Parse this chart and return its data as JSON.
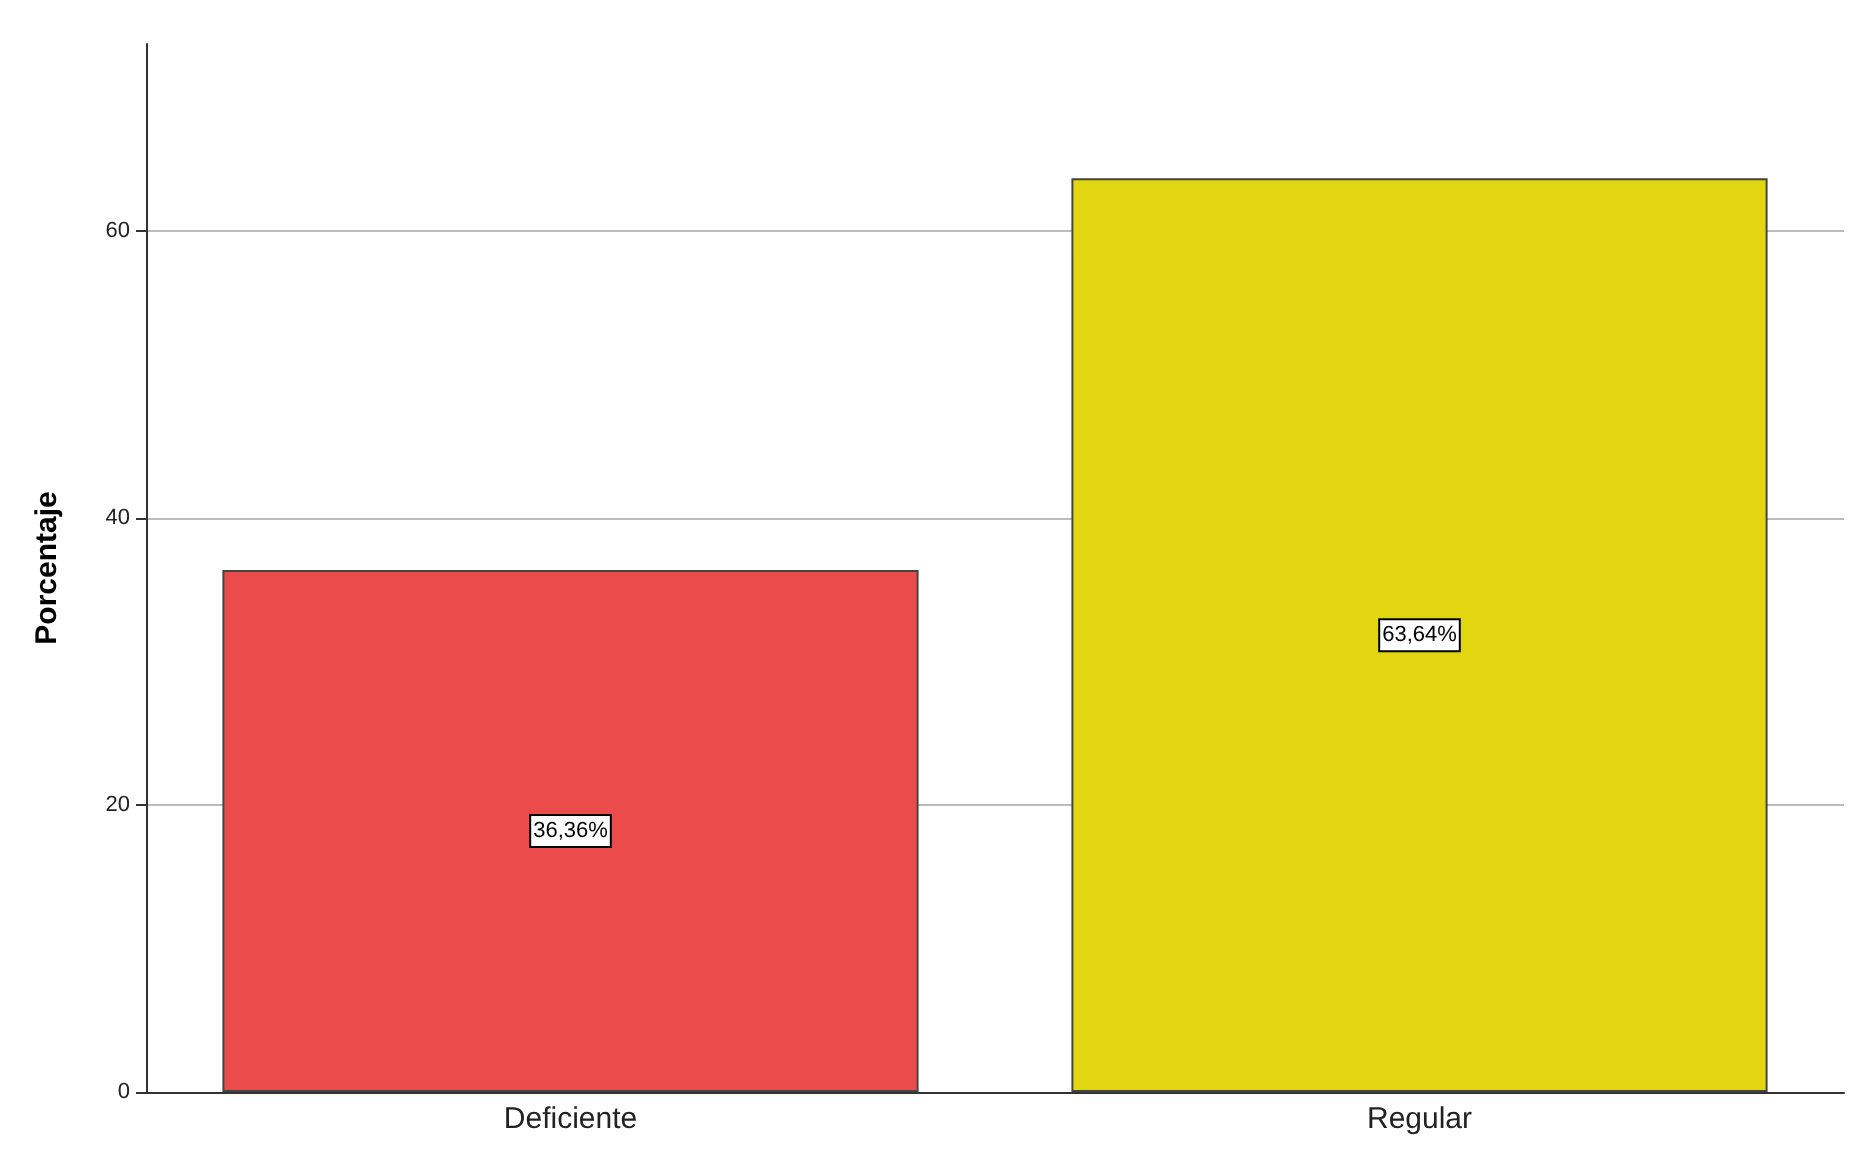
{
  "chart_data": {
    "type": "bar",
    "ylabel": "Porcentaje",
    "categories": [
      "Deficiente",
      "Regular"
    ],
    "values": [
      36.36,
      63.64
    ],
    "colors": [
      "#eb4b4b",
      "#e1d60f"
    ],
    "value_labels": [
      "36,36%",
      "63,64%"
    ],
    "ylim": [
      0,
      73
    ],
    "yticks": [
      0,
      20,
      40,
      60
    ],
    "grid": "y"
  }
}
